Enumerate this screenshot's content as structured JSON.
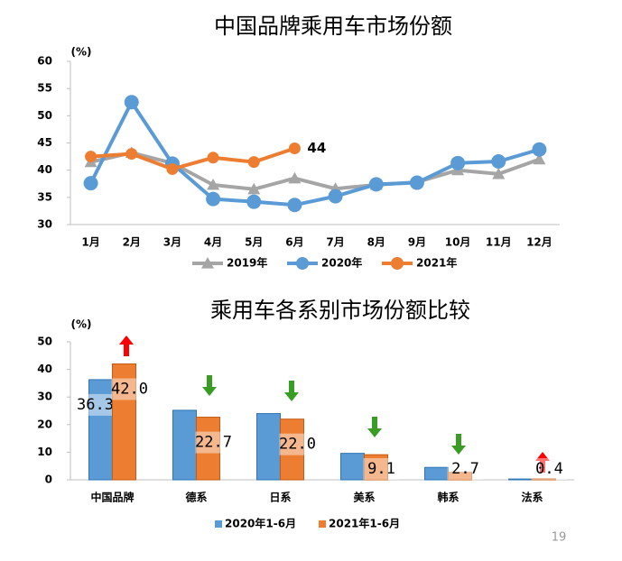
{
  "chart_data": [
    {
      "type": "line",
      "title": "中国品牌乘用车市场份额",
      "y_unit": "(%)",
      "categories": [
        "1月",
        "2月",
        "3月",
        "4月",
        "5月",
        "6月",
        "7月",
        "8月",
        "9月",
        "10月",
        "11月",
        "12月"
      ],
      "series": [
        {
          "name": "2019年",
          "color": "#a5a5a5",
          "marker": "triangle",
          "values": [
            41.5,
            43.2,
            41.3,
            37.3,
            36.5,
            38.5,
            36.6,
            37.3,
            37.8,
            40.0,
            39.3,
            42.0
          ]
        },
        {
          "name": "2020年",
          "color": "#5b9bd5",
          "marker": "circle",
          "values": [
            37.6,
            52.5,
            41.2,
            34.7,
            34.2,
            33.6,
            35.2,
            37.4,
            37.7,
            41.3,
            41.6,
            43.8
          ]
        },
        {
          "name": "2021年",
          "color": "#ed7d31",
          "marker": "circle",
          "values": [
            42.5,
            43.0,
            40.2,
            42.3,
            41.5,
            44.0,
            null,
            null,
            null,
            null,
            null,
            null
          ],
          "value_labels": [
            null,
            null,
            null,
            null,
            null,
            "44",
            null,
            null,
            null,
            null,
            null,
            null
          ]
        }
      ],
      "ylim": [
        30,
        60
      ],
      "yticks": [
        30,
        35,
        40,
        45,
        50,
        55,
        60
      ],
      "grid": false,
      "legend": "bottom"
    },
    {
      "type": "bar",
      "title": "乘用车各系别市场份额比较",
      "y_unit": "(%)",
      "categories": [
        "中国品牌",
        "德系",
        "日系",
        "美系",
        "韩系",
        "法系"
      ],
      "series": [
        {
          "name": "2020年1-6月",
          "color": "#5b9bd5",
          "values": [
            36.3,
            25.2,
            24.0,
            9.6,
            4.5,
            0.3
          ],
          "value_labels": [
            "36.3",
            null,
            null,
            null,
            null,
            null
          ]
        },
        {
          "name": "2021年1-6月",
          "color": "#ed7d31",
          "values": [
            42.0,
            22.7,
            22.0,
            9.1,
            2.7,
            0.4
          ],
          "value_labels": [
            "42.0",
            "22.7",
            "22.0",
            "9.1",
            "2.7",
            "0.4"
          ]
        }
      ],
      "ylim": [
        0,
        50
      ],
      "yticks": [
        0,
        10,
        20,
        30,
        40,
        50
      ],
      "grid": false,
      "legend": "bottom"
    }
  ],
  "page_number": "19"
}
